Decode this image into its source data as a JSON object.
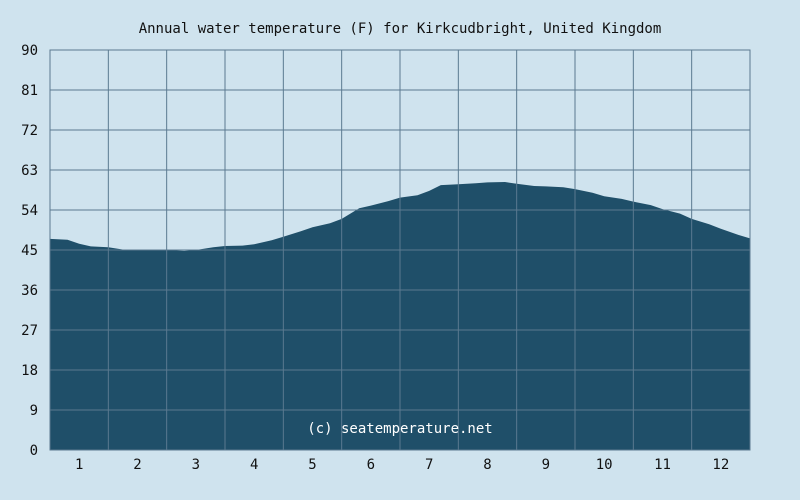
{
  "chart_data": {
    "type": "area",
    "title": "Annual water temperature (F) for Kirkcudbright, United Kingdom",
    "xlabel": "",
    "ylabel": "",
    "x_ticks": [
      "1",
      "2",
      "3",
      "4",
      "5",
      "6",
      "7",
      "8",
      "9",
      "10",
      "11",
      "12"
    ],
    "y_ticks": [
      "0",
      "9",
      "18",
      "27",
      "36",
      "45",
      "54",
      "63",
      "72",
      "81",
      "90"
    ],
    "ylim": [
      0,
      90
    ],
    "xlim": [
      0.5,
      12.5
    ],
    "grid": true,
    "watermark": "(c) seatemperature.net",
    "colors": {
      "background": "#cfe3ee",
      "fill": "#1f4f69",
      "grid": "#5b7a90"
    },
    "series": [
      {
        "x": [
          0.5,
          0.8,
          1.0,
          1.2,
          1.5,
          1.8,
          2.0,
          2.3,
          2.5,
          2.8,
          3.0,
          3.3,
          3.5,
          3.8,
          4.0,
          4.3,
          4.5,
          4.8,
          5.0,
          5.3,
          5.5,
          5.8,
          6.0,
          6.3,
          6.5,
          6.8,
          7.0,
          7.2,
          7.5,
          7.8,
          8.0,
          8.3,
          8.5,
          8.8,
          9.0,
          9.3,
          9.5,
          9.8,
          10.0,
          10.3,
          10.5,
          10.8,
          11.0,
          11.3,
          11.5,
          11.8,
          12.0,
          12.3,
          12.5
        ],
        "values": [
          47.5,
          47.3,
          46.4,
          45.8,
          45.6,
          45.0,
          44.9,
          45.0,
          45.0,
          44.8,
          45.0,
          45.6,
          45.9,
          46.0,
          46.3,
          47.2,
          48.0,
          49.2,
          50.1,
          51.0,
          52.0,
          54.4,
          55.0,
          56.0,
          56.8,
          57.3,
          58.3,
          59.6,
          59.8,
          60.0,
          60.2,
          60.3,
          59.9,
          59.4,
          59.3,
          59.1,
          58.7,
          57.9,
          57.1,
          56.5,
          55.9,
          55.1,
          54.2,
          53.2,
          52.0,
          50.8,
          49.8,
          48.4,
          47.6
        ]
      }
    ]
  }
}
